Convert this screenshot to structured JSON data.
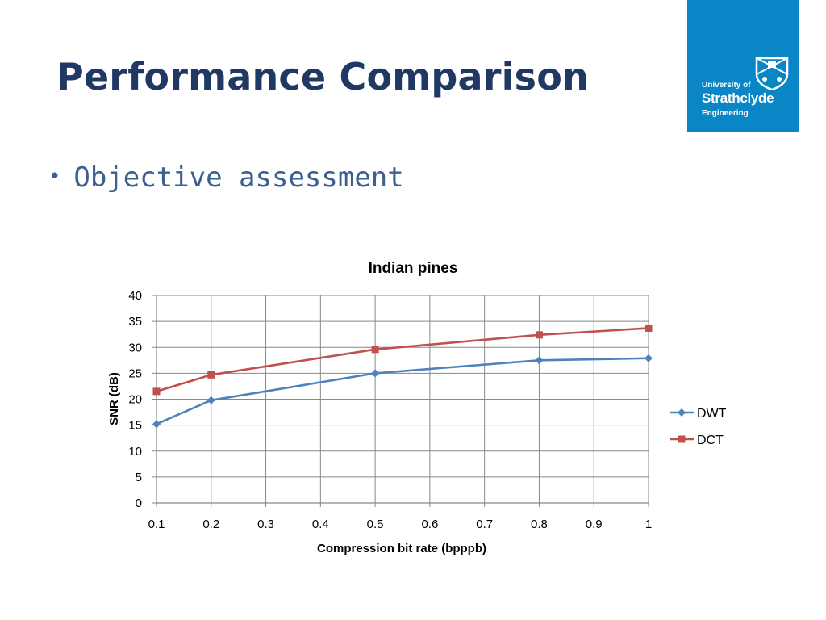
{
  "slide": {
    "title": "Performance Comparison",
    "bullets": [
      "Objective assessment"
    ]
  },
  "logo": {
    "line1": "University of",
    "line2": "Strathclyde",
    "line3": "Engineering",
    "background": "#0a85c5"
  },
  "colors": {
    "title": "#1f3864",
    "bullet_text": "#3b5f8f"
  },
  "chart_data": {
    "type": "line",
    "title": "Indian pines",
    "xlabel": "Compression bit rate (bpppb)",
    "ylabel": "SNR (dB)",
    "xlim": [
      0.1,
      1
    ],
    "ylim": [
      0,
      40
    ],
    "x_ticks": [
      "0.1",
      "0.2",
      "0.3",
      "0.4",
      "0.5",
      "0.6",
      "0.7",
      "0.8",
      "0.9",
      "1"
    ],
    "y_ticks": [
      "0",
      "5",
      "10",
      "15",
      "20",
      "25",
      "30",
      "35",
      "40"
    ],
    "grid": true,
    "legend_position": "right",
    "series": [
      {
        "name": "DWT",
        "color": "#4f81bd",
        "marker": "diamond",
        "x": [
          0.1,
          0.2,
          0.5,
          0.8,
          1.0
        ],
        "y": [
          15.2,
          19.8,
          25.0,
          27.5,
          27.9
        ]
      },
      {
        "name": "DCT",
        "color": "#c0504d",
        "marker": "square",
        "x": [
          0.1,
          0.2,
          0.5,
          0.8,
          1.0
        ],
        "y": [
          21.5,
          24.7,
          29.6,
          32.4,
          33.7
        ]
      }
    ]
  }
}
